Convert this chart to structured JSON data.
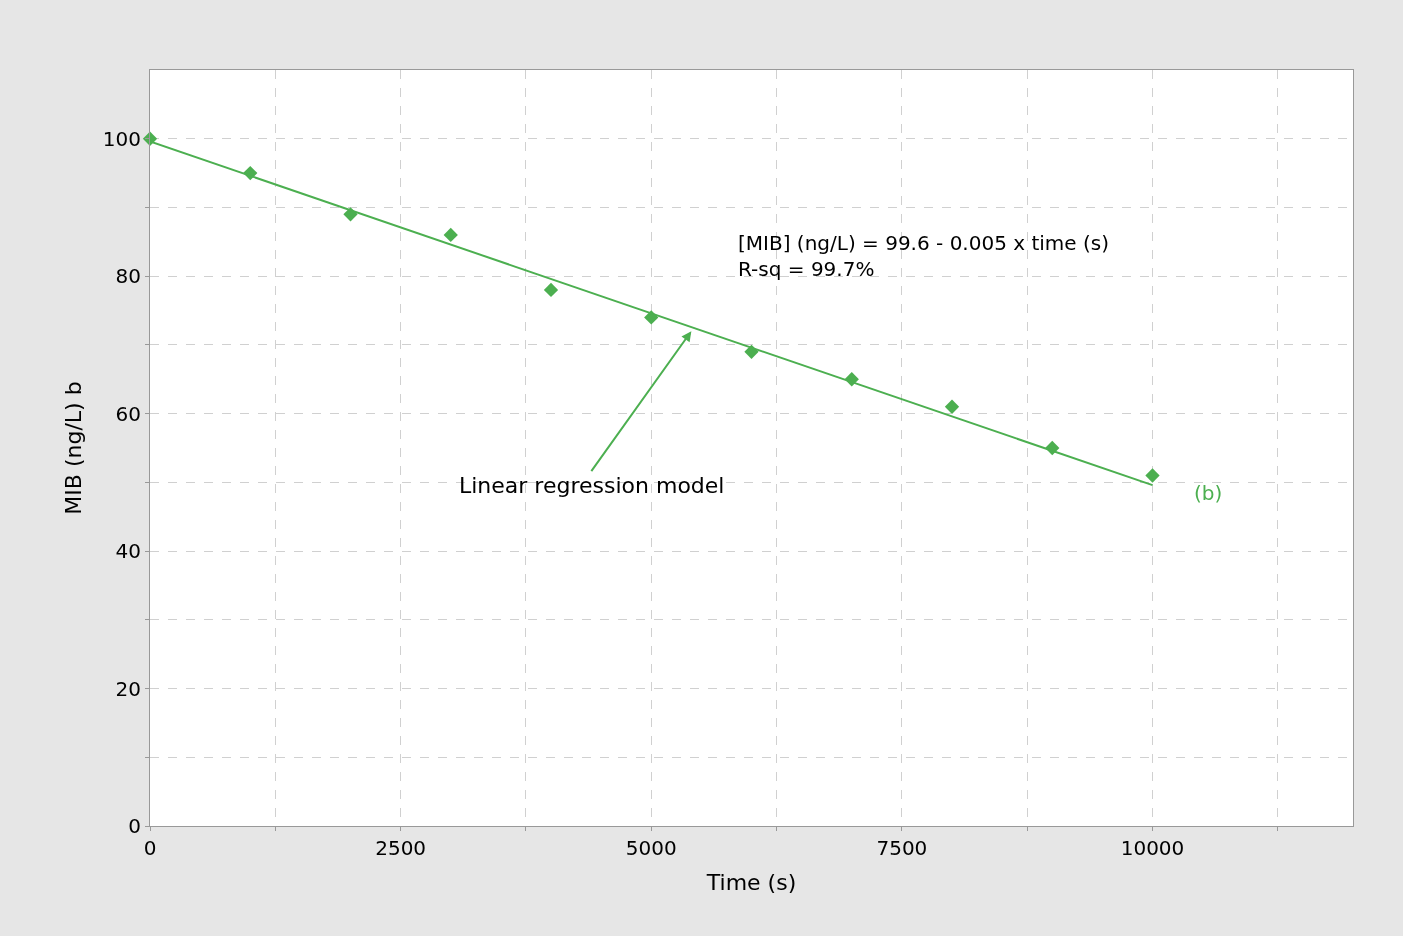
{
  "chart_data": {
    "type": "scatter",
    "xlabel": "Time (s)",
    "ylabel": "MIB (ng/L) b",
    "series": [
      {
        "color": "#4caf50",
        "x": [
          0,
          1000,
          2000,
          3000,
          4000,
          5000,
          6000,
          7000,
          8000,
          9000,
          10000
        ],
        "values": [
          100,
          95,
          89,
          86,
          78,
          74,
          69,
          65,
          61,
          55,
          51
        ],
        "marker": "diamond"
      },
      {
        "type": "line",
        "color": "#4caf50",
        "x": [
          0,
          10000
        ],
        "values": [
          99.6,
          49.6
        ],
        "marker": "none",
        "line_style": "solid"
      }
    ],
    "xlim": [
      0,
      12000
    ],
    "ylim": [
      0,
      110
    ],
    "xticks": [
      0,
      {
        "value": 1250,
        "label": null
      },
      2500,
      {
        "value": 3750,
        "label": null
      },
      5000,
      {
        "value": 6250,
        "label": null
      },
      7500,
      {
        "value": 8750,
        "label": null
      },
      10000,
      {
        "value": 11250,
        "label": null
      }
    ],
    "yticks": [
      0,
      {
        "value": 10,
        "label": null
      },
      20,
      {
        "value": 30,
        "label": null
      },
      40,
      {
        "value": 50,
        "label": null
      },
      60,
      {
        "value": 70,
        "label": null
      },
      80,
      {
        "value": 90,
        "label": null
      },
      100
    ],
    "grid": true,
    "annotations": [
      "[MIB] (ng/L) = 99.6 - 0.005 x time (s)\nR-sq = 99.7%",
      {
        "text": "Linear regression model",
        "x": 5400,
        "y": 72
      },
      "(b)"
    ]
  }
}
